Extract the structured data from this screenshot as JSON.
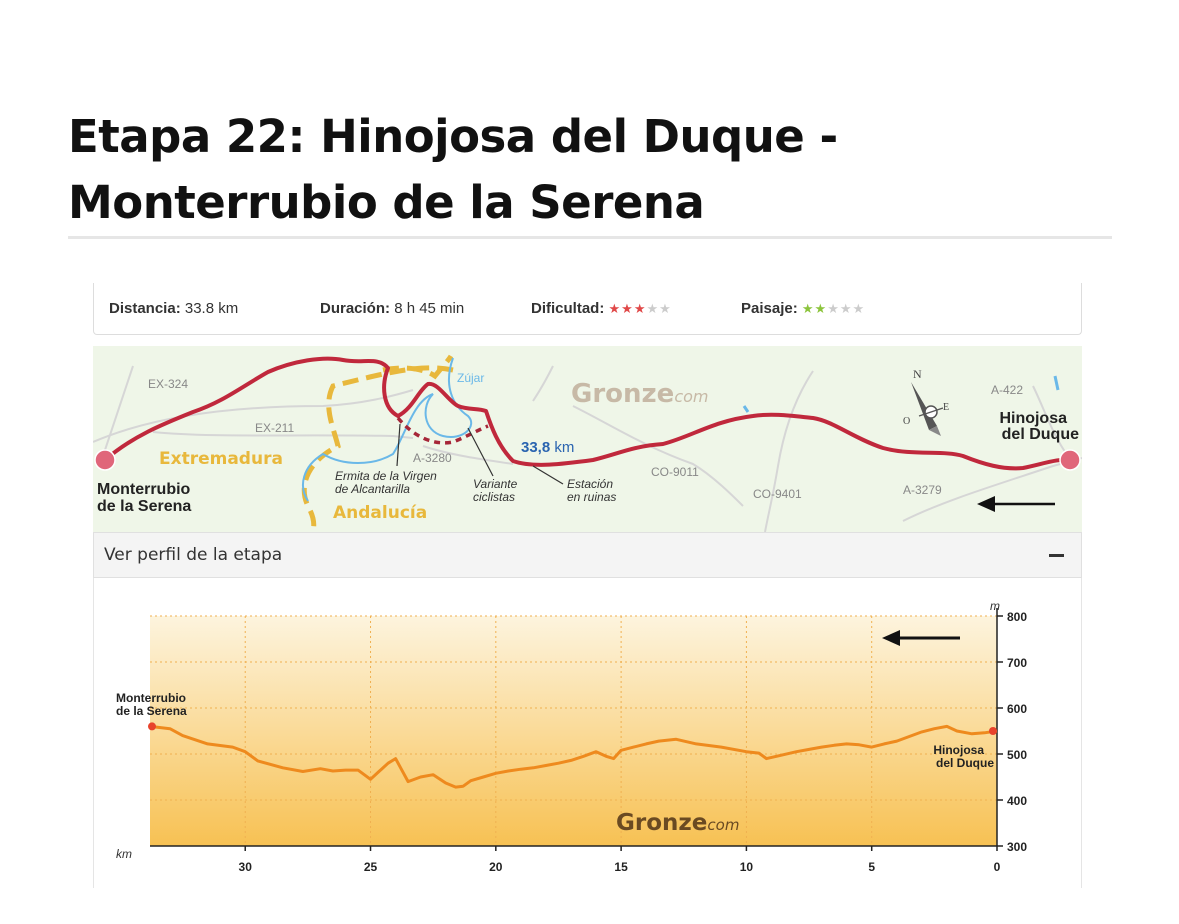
{
  "page": {
    "title_line1": "Etapa 22: Hinojosa del Duque -",
    "title_line2": "Monterrubio de la Serena"
  },
  "stats": {
    "distance_label": "Distancia:",
    "distance_value": "33.8 km",
    "duration_label": "Duración:",
    "duration_value": "8 h 45 min",
    "difficulty_label": "Dificultad:",
    "difficulty_stars": 3,
    "landscape_label": "Paisaje:",
    "landscape_stars": 2,
    "max_stars": 5,
    "star_glyph": "★",
    "colors": {
      "difficulty": "#e04848",
      "landscape": "#8cc43c",
      "off": "#cccccc"
    }
  },
  "map": {
    "roads": {
      "ex324": "EX-324",
      "ex211": "EX-211",
      "a3280": "A-3280",
      "co9011": "CO-9011",
      "co9401": "CO-9401",
      "a3279": "A-3279",
      "a422": "A-422"
    },
    "river": "Zújar",
    "region_extremadura": "Extremadura",
    "region_andalucia": "Andalucía",
    "distance": "33,8",
    "distance_unit": "km",
    "brand": "Gronze",
    "brand_suffix": "com",
    "start_line1": "Monterrubio",
    "start_line2": "de la Serena",
    "end_line1": "Hinojosa",
    "end_line2": "del Duque",
    "poi_ermita_line1": "Ermita de la Virgen",
    "poi_ermita_line2": "de Alcantarilla",
    "poi_variante_line1": "Variante",
    "poi_variante_line2": "ciclistas",
    "poi_estacion_line1": "Estación",
    "poi_estacion_line2": "en ruinas",
    "compass_n": "N",
    "compass_o": "O",
    "compass_e": "E",
    "colors": {
      "route": "#c0283c",
      "border": "#e8b83c",
      "river": "#6ab8e8",
      "road": "#d8d8d8"
    }
  },
  "profile": {
    "header_label": "Ver perfil de la etapa",
    "start_line1": "Monterrubio",
    "start_line2": "de la Serena",
    "end_line1": "Hinojosa",
    "end_line2": "del Duque",
    "brand": "Gronze",
    "brand_suffix": "com"
  },
  "chart_data": {
    "type": "area",
    "x_unit": "km",
    "y_unit": "m",
    "xlim": [
      33.8,
      0
    ],
    "ylim": [
      300,
      800
    ],
    "x_ticks": [
      30,
      25,
      20,
      15,
      10,
      5,
      0
    ],
    "y_ticks": [
      300,
      400,
      500,
      600,
      700,
      800
    ],
    "grid": true,
    "colors": {
      "line": "#ee8a1e",
      "fill_top": "#fdf4de",
      "fill_bottom": "#f7c153",
      "marker": "#e8432c"
    },
    "x": [
      33.8,
      33,
      32.5,
      31.5,
      30.5,
      30,
      29.5,
      28.5,
      27.7,
      27,
      26.5,
      26,
      25.5,
      25,
      24.7,
      24.3,
      24,
      23.8,
      23.5,
      23,
      22.5,
      22,
      21.6,
      21.3,
      21,
      20.5,
      20,
      19.5,
      19,
      18.5,
      18,
      17.5,
      17,
      16.5,
      16,
      15.6,
      15.3,
      15,
      14.5,
      14,
      13.5,
      12.8,
      12,
      11,
      10,
      9.5,
      9.2,
      8.8,
      8,
      7.5,
      7,
      6.5,
      6,
      5.5,
      5,
      4.5,
      4,
      3.5,
      3,
      2.5,
      2,
      1.6,
      1,
      0.5,
      0
    ],
    "y": [
      560,
      555,
      540,
      522,
      515,
      505,
      485,
      470,
      462,
      468,
      463,
      465,
      465,
      445,
      460,
      480,
      490,
      470,
      440,
      450,
      455,
      437,
      428,
      430,
      442,
      450,
      458,
      463,
      467,
      470,
      475,
      480,
      486,
      495,
      505,
      495,
      490,
      508,
      515,
      522,
      528,
      532,
      522,
      515,
      505,
      502,
      490,
      495,
      505,
      510,
      515,
      519,
      522,
      520,
      515,
      522,
      528,
      538,
      548,
      555,
      560,
      550,
      544,
      546,
      550
    ]
  }
}
